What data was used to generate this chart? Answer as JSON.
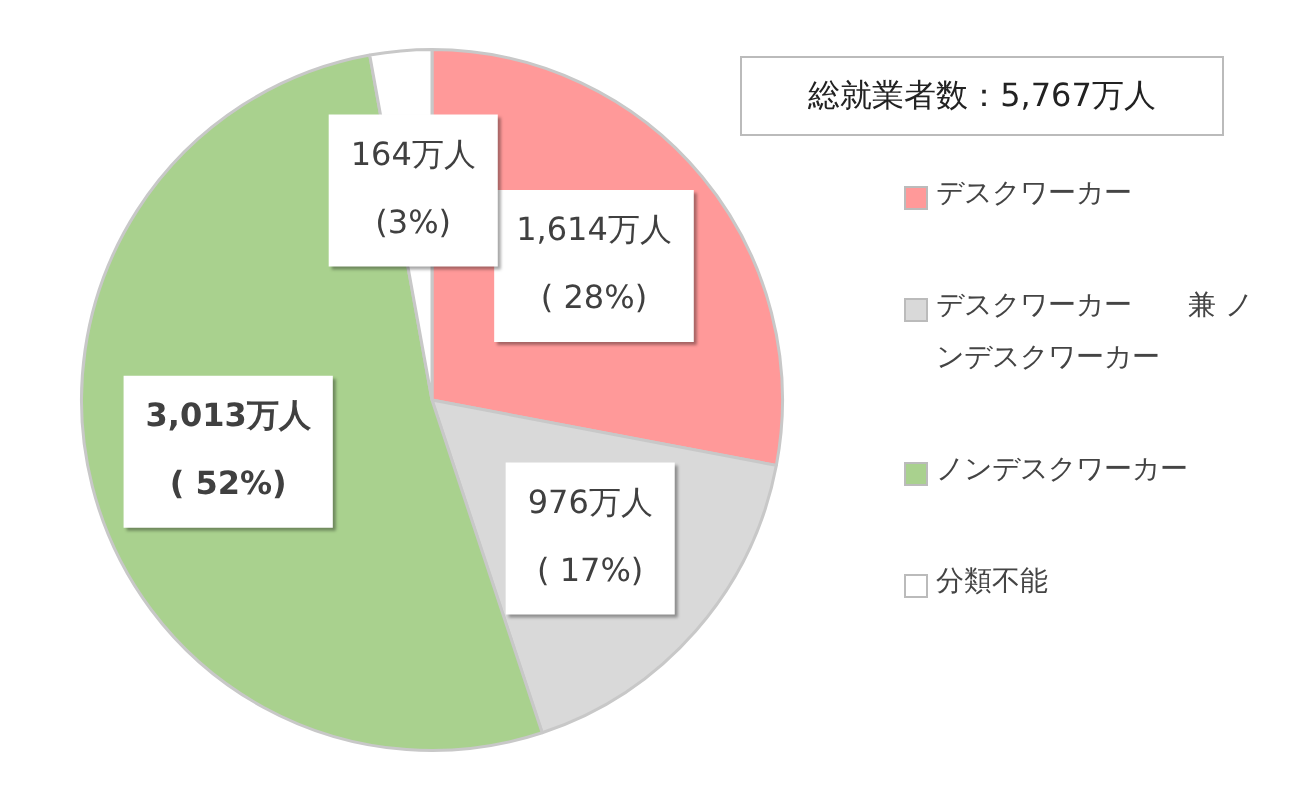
{
  "chart_data": {
    "type": "pie",
    "title": "総就業者数：5,767万人",
    "categories": [
      "デスクワーカー",
      "デスクワーカー　　兼 ノンデスクワーカー",
      "ノンデスクワーカー",
      "分類不能"
    ],
    "values": [
      1614,
      976,
      3013,
      164
    ],
    "colors": [
      "#ff9999",
      "#d9d9d9",
      "#a9d18e",
      "#ffffff"
    ],
    "value_labels": [
      "1,614万人\n( 28%)",
      "976万人\n( 17%)",
      "3,013万人\n( 52%)",
      "164万人\n(3%)"
    ],
    "legend": "right"
  }
}
